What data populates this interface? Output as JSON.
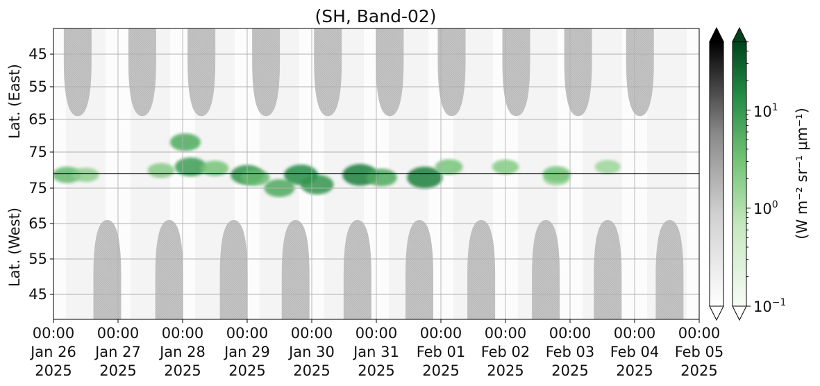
{
  "chart_data": {
    "type": "heatmap",
    "title": "(SH, Band-02)",
    "xlabel": "",
    "x_ticks": [
      {
        "time": "00:00",
        "date": "Jan 26",
        "year": "2025"
      },
      {
        "time": "00:00",
        "date": "Jan 27",
        "year": "2025"
      },
      {
        "time": "00:00",
        "date": "Jan 28",
        "year": "2025"
      },
      {
        "time": "00:00",
        "date": "Jan 29",
        "year": "2025"
      },
      {
        "time": "00:00",
        "date": "Jan 30",
        "year": "2025"
      },
      {
        "time": "00:00",
        "date": "Jan 31",
        "year": "2025"
      },
      {
        "time": "00:00",
        "date": "Feb 01",
        "year": "2025"
      },
      {
        "time": "00:00",
        "date": "Feb 02",
        "year": "2025"
      },
      {
        "time": "00:00",
        "date": "Feb 03",
        "year": "2025"
      },
      {
        "time": "00:00",
        "date": "Feb 04",
        "year": "2025"
      },
      {
        "time": "00:00",
        "date": "Feb 05",
        "year": "2025"
      }
    ],
    "xlim": [
      "2025-01-26T00:00",
      "2025-02-05T00:00"
    ],
    "panels": [
      {
        "name": "east",
        "ylabel": "Lat. (East)",
        "yticks": [
          "45",
          "55",
          "65",
          "75"
        ]
      },
      {
        "name": "west",
        "ylabel": "Lat. (West)",
        "yticks": [
          "75",
          "65",
          "55",
          "45"
        ]
      }
    ],
    "grid": true,
    "colorbars": [
      {
        "name": "gray",
        "colormap": "Greys",
        "extend": "both"
      },
      {
        "name": "green",
        "colormap": "Greens",
        "extend": "both",
        "scale": "log",
        "range": [
          0.1,
          50
        ],
        "tick_labels": [
          {
            "base": "10",
            "exp": "1"
          },
          {
            "base": "10",
            "exp": "0"
          },
          {
            "base": "10",
            "exp": "−1"
          }
        ],
        "label": "(W m⁻² sr⁻¹ μm⁻¹)"
      }
    ],
    "night_lobes": {
      "east_days": [
        "2025-01-26T09:00",
        "2025-01-27T09:00",
        "2025-01-28T07:00",
        "2025-01-29T07:00",
        "2025-01-30T06:00",
        "2025-01-31T05:00",
        "2025-02-01T04:00",
        "2025-02-02T04:00",
        "2025-02-03T03:00",
        "2025-02-04T02:00"
      ],
      "west_days": [
        "2025-01-26T20:00",
        "2025-01-27T19:00",
        "2025-01-28T19:00",
        "2025-01-29T18:00",
        "2025-01-30T17:00",
        "2025-01-31T16:00",
        "2025-02-01T15:00",
        "2025-02-02T15:00",
        "2025-02-03T14:00",
        "2025-02-04T13:00"
      ],
      "east_edge_lat": 64,
      "west_edge_lat": 66
    },
    "emission_patches": [
      {
        "t": "2025-01-26T05:00",
        "panel": "east",
        "lat": 82,
        "value": 2.0
      },
      {
        "t": "2025-01-26T12:00",
        "panel": "east",
        "lat": 82,
        "value": 1.0
      },
      {
        "t": "2025-01-27T16:00",
        "panel": "west",
        "lat": 80,
        "value": 1.2
      },
      {
        "t": "2025-01-28T01:00",
        "panel": "east",
        "lat": 72,
        "value": 3.0
      },
      {
        "t": "2025-01-28T03:00",
        "panel": "west",
        "lat": 81,
        "value": 4.0
      },
      {
        "t": "2025-01-28T12:00",
        "panel": "east",
        "lat": 80,
        "value": 1.5
      },
      {
        "t": "2025-01-29T00:00",
        "panel": "east",
        "lat": 82,
        "value": 5.0
      },
      {
        "t": "2025-01-29T03:00",
        "panel": "west",
        "lat": 78,
        "value": 2.0
      },
      {
        "t": "2025-01-29T12:00",
        "panel": "west",
        "lat": 75,
        "value": 3.0
      },
      {
        "t": "2025-01-29T20:00",
        "panel": "east",
        "lat": 82,
        "value": 6.0
      },
      {
        "t": "2025-01-30T02:00",
        "panel": "west",
        "lat": 76,
        "value": 5.0
      },
      {
        "t": "2025-01-30T18:00",
        "panel": "east",
        "lat": 82,
        "value": 8.0
      },
      {
        "t": "2025-01-31T02:00",
        "panel": "west",
        "lat": 78,
        "value": 3.0
      },
      {
        "t": "2025-01-31T18:00",
        "panel": "west",
        "lat": 78,
        "value": 8.0
      },
      {
        "t": "2025-02-01T03:00",
        "panel": "west",
        "lat": 81,
        "value": 1.5
      },
      {
        "t": "2025-02-02T00:00",
        "panel": "west",
        "lat": 81,
        "value": 1.2
      },
      {
        "t": "2025-02-02T19:00",
        "panel": "east",
        "lat": 83,
        "value": 1.0
      },
      {
        "t": "2025-02-02T19:00",
        "panel": "west",
        "lat": 79,
        "value": 1.5
      },
      {
        "t": "2025-02-03T14:00",
        "panel": "west",
        "lat": 81,
        "value": 0.8
      }
    ]
  }
}
